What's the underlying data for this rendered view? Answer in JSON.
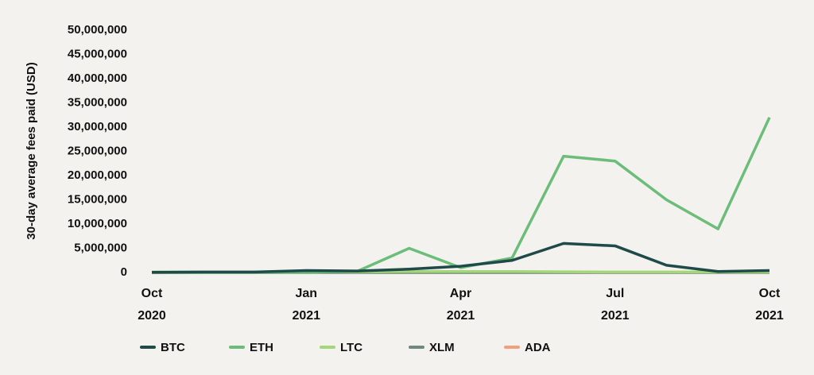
{
  "chart_data": {
    "type": "line",
    "y_label": "30-day average fees paid (USD)",
    "x": [
      "2020-10",
      "2020-11",
      "2020-12",
      "2021-01",
      "2021-02",
      "2021-03",
      "2021-04",
      "2021-05",
      "2021-06",
      "2021-07",
      "2021-08",
      "2021-09",
      "2021-10"
    ],
    "xticks": [
      {
        "value": "2020-10",
        "label": "Oct 2020"
      },
      {
        "value": "2021-01",
        "label": "Jan 2021"
      },
      {
        "value": "2021-04",
        "label": "Apr 2021"
      },
      {
        "value": "2021-07",
        "label": "Jul 2021"
      },
      {
        "value": "2021-10",
        "label": "Oct 2021"
      }
    ],
    "ylim": [
      0,
      50000000
    ],
    "yticks": [
      0,
      {
        "value": 5000000,
        "label": "5,000,000"
      },
      {
        "value": 10000000,
        "label": "10,000,000"
      },
      {
        "value": 15000000,
        "label": "15,000,000"
      },
      {
        "value": 20000000,
        "label": "20,000,000"
      },
      {
        "value": 25000000,
        "label": "25,000,000"
      },
      {
        "value": 30000000,
        "label": "30,000,000"
      },
      {
        "value": 35000000,
        "label": "35,000,000"
      },
      {
        "value": 40000000,
        "label": "40,000,000"
      },
      {
        "value": 45000000,
        "label": "45,000,000"
      },
      {
        "value": 50000000,
        "label": "50,000,000"
      }
    ],
    "series": [
      {
        "name": "BTC",
        "color": "#1f4a4a",
        "values": [
          50000,
          100000,
          100000,
          400000,
          300000,
          700000,
          1300000,
          2500000,
          6000000,
          5500000,
          1500000,
          200000,
          400000
        ]
      },
      {
        "name": "ETH",
        "color": "#6cbd7a",
        "values": [
          0,
          0,
          0,
          0,
          300000,
          5000000,
          1000000,
          3000000,
          24000000,
          23000000,
          15000000,
          9000000,
          32000000
        ]
      },
      {
        "name": "LTC",
        "color": "#a6d67a",
        "values": [
          100000,
          100000,
          100000,
          200000,
          150000,
          200000,
          200000,
          200000,
          150000,
          100000,
          100000,
          100000,
          100000
        ]
      },
      {
        "name": "XLM",
        "color": "#6e8a7e",
        "values": [
          10000,
          10000,
          10000,
          10000,
          10000,
          10000,
          10000,
          10000,
          10000,
          10000,
          10000,
          10000,
          10000
        ]
      },
      {
        "name": "ADA",
        "color": "#f0a07a",
        "values": [
          20000,
          20000,
          20000,
          20000,
          20000,
          20000,
          20000,
          20000,
          20000,
          20000,
          20000,
          20000,
          20000
        ]
      }
    ]
  }
}
